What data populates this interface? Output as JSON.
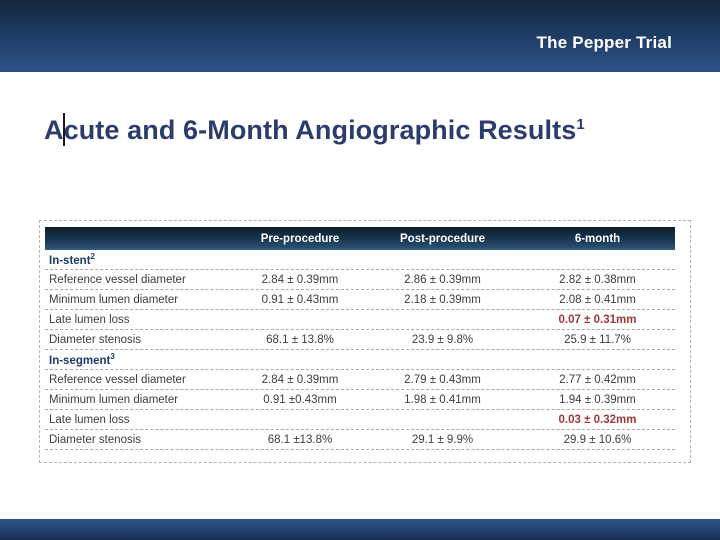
{
  "colors": {
    "accent-red": "#9c3a38",
    "title-navy": "#2b3c6d",
    "section-navy": "#1e3a66",
    "banner-blue": "#2e5286",
    "table-header-navy": "#16314a"
  },
  "banner": {
    "title": "The Pepper Trial"
  },
  "slide": {
    "title": "Acute and 6-Month Angiographic Results",
    "title_superscript": "1"
  },
  "table": {
    "columns": [
      "",
      "Pre-procedure",
      "Post-procedure",
      "6-month"
    ],
    "rows": [
      {
        "label": "In-stent",
        "sup": "2",
        "type": "section",
        "values": [
          "",
          "",
          ""
        ]
      },
      {
        "label": "Reference vessel diameter",
        "type": "data",
        "values": [
          "2.84 ± 0.39mm",
          "2.86 ± 0.39mm",
          "2.82 ± 0.38mm"
        ]
      },
      {
        "label": "Minimum lumen diameter",
        "type": "data",
        "values": [
          "0.91 ± 0.43mm",
          "2.18 ± 0.39mm",
          "2.08 ± 0.41mm"
        ]
      },
      {
        "label": "Late lumen loss",
        "type": "data",
        "accent_column": 2,
        "values": [
          "",
          "",
          "0.07 ± 0.31mm"
        ]
      },
      {
        "label": "Diameter stenosis",
        "type": "data",
        "values": [
          "68.1 ± 13.8%",
          "23.9 ± 9.8%",
          "25.9 ± 11.7%"
        ]
      },
      {
        "label": "In-segment",
        "sup": "3",
        "type": "section",
        "values": [
          "",
          "",
          ""
        ]
      },
      {
        "label": "Reference vessel diameter",
        "type": "data",
        "values": [
          "2.84 ± 0.39mm",
          "2.79 ± 0.43mm",
          "2.77 ± 0.42mm"
        ]
      },
      {
        "label": "Minimum lumen diameter",
        "type": "data",
        "values": [
          "0.91 ±0.43mm",
          "1.98 ± 0.41mm",
          "1.94 ± 0.39mm"
        ]
      },
      {
        "label": "Late lumen loss",
        "type": "data",
        "accent_column": 2,
        "values": [
          "",
          "",
          "0.03 ± 0.32mm"
        ]
      },
      {
        "label": "Diameter stenosis",
        "type": "data",
        "values": [
          "68.1 ±13.8%",
          "29.1 ± 9.9%",
          "29.9 ± 10.6%"
        ]
      }
    ]
  }
}
